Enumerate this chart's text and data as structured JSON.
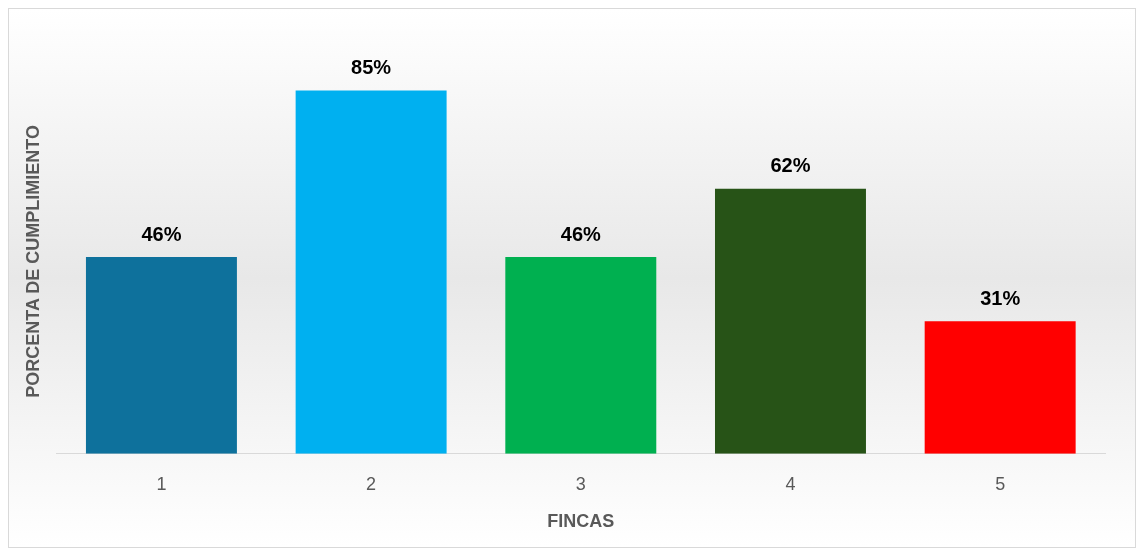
{
  "chart_data": {
    "type": "bar",
    "xlabel": "FINCAS",
    "ylabel": "PORCENTA DE CUMPLIMIENTO",
    "categories": [
      "1",
      "2",
      "3",
      "4",
      "5"
    ],
    "values": [
      46,
      85,
      46,
      62,
      31
    ],
    "colors": [
      "#0e719c",
      "#00b0f0",
      "#00b050",
      "#275317",
      "#ff0000"
    ],
    "value_labels": [
      "46%",
      "85%",
      "46%",
      "62%",
      "31%"
    ]
  }
}
